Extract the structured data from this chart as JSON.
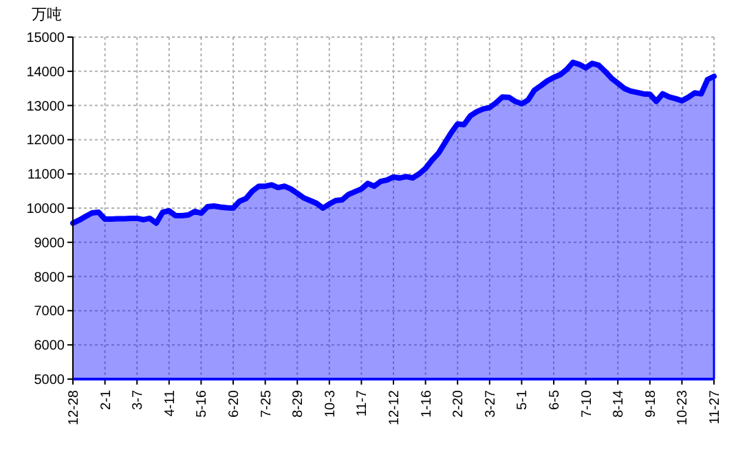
{
  "chart_data": {
    "type": "area",
    "ylabel": "万吨",
    "categories": [
      "12-28",
      null,
      null,
      null,
      null,
      "2-1",
      null,
      null,
      null,
      null,
      "3-7",
      null,
      null,
      null,
      null,
      "4-11",
      null,
      null,
      null,
      null,
      "5-16",
      null,
      null,
      null,
      null,
      "6-20",
      null,
      null,
      null,
      null,
      "7-25",
      null,
      null,
      null,
      null,
      "8-29",
      null,
      null,
      null,
      null,
      "10-3",
      null,
      null,
      null,
      null,
      "11-7",
      null,
      null,
      null,
      null,
      "12-12",
      null,
      null,
      null,
      null,
      "1-16",
      null,
      null,
      null,
      null,
      "2-20",
      null,
      null,
      null,
      null,
      "3-27",
      null,
      null,
      null,
      null,
      "5-1",
      null,
      null,
      null,
      null,
      "6-5",
      null,
      null,
      null,
      null,
      "7-10",
      null,
      null,
      null,
      null,
      "8-14",
      null,
      null,
      null,
      null,
      "9-18",
      null,
      null,
      null,
      null,
      "10-23",
      null,
      null,
      null,
      null,
      "11-27"
    ],
    "series": [
      {
        "color": "#0000ff",
        "values": [
          9560,
          9650,
          9760,
          9860,
          9880,
          9680,
          9680,
          9690,
          9690,
          9700,
          9700,
          9660,
          9700,
          9560,
          9880,
          9920,
          9780,
          9780,
          9800,
          9900,
          9850,
          10040,
          10060,
          10030,
          10010,
          10000,
          10200,
          10280,
          10500,
          10640,
          10640,
          10680,
          10600,
          10640,
          10560,
          10430,
          10300,
          10220,
          10140,
          10000,
          10120,
          10220,
          10240,
          10400,
          10480,
          10560,
          10720,
          10640,
          10780,
          10820,
          10910,
          10880,
          10920,
          10880,
          11000,
          11160,
          11400,
          11600,
          11900,
          12200,
          12460,
          12440,
          12700,
          12820,
          12900,
          12940,
          13080,
          13250,
          13240,
          13120,
          13050,
          13160,
          13450,
          13580,
          13720,
          13820,
          13900,
          14050,
          14260,
          14200,
          14100,
          14230,
          14180,
          14000,
          13800,
          13650,
          13500,
          13420,
          13380,
          13340,
          13330,
          13120,
          13340,
          13250,
          13200,
          13140,
          13240,
          13370,
          13340,
          13760,
          13850
        ]
      }
    ],
    "ylim": [
      5000,
      15000
    ],
    "yticks": [
      5000,
      6000,
      7000,
      8000,
      9000,
      10000,
      11000,
      12000,
      13000,
      14000,
      15000
    ],
    "grid": true
  }
}
